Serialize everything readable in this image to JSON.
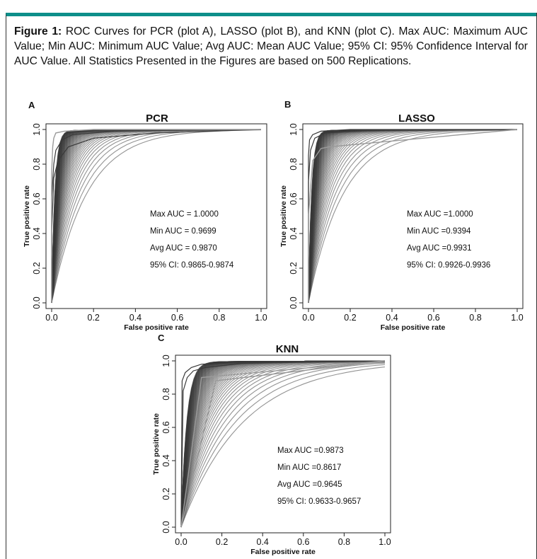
{
  "caption": {
    "label": "Figure 1:",
    "text": "ROC Curves for PCR (plot A), LASSO (plot B), and KNN (plot C). Max AUC: Maximum AUC Value; Min AUC: Minimum AUC Value; Avg AUC: Mean AUC Value; 95% CI: 95% Confidence Interval for AUC Value. All Statistics Presented in the Figures are based on 500 Replications."
  },
  "colors": {
    "accent": "#0d8f8a",
    "curves": "#3a3a3a",
    "light_curves": "#9a9a9a"
  },
  "chart_data": [
    {
      "type": "line",
      "panel": "A",
      "title": "PCR",
      "xlabel": "False positive rate",
      "ylabel": "True positive rate",
      "xlim": [
        0,
        1
      ],
      "ylim": [
        0,
        1
      ],
      "xticks": [
        "0.0",
        "0.2",
        "0.4",
        "0.6",
        "0.8",
        "1.0"
      ],
      "yticks": [
        "0.0",
        "0.2",
        "0.4",
        "0.6",
        "0.8",
        "1.0"
      ],
      "series": [
        {
          "x": [
            0.0,
            0.0,
            0.01,
            0.02,
            0.05,
            0.1,
            0.3,
            1.0
          ],
          "y": [
            0.0,
            0.6,
            0.8,
            0.88,
            0.94,
            0.97,
            0.99,
            1.0
          ]
        },
        {
          "x": [
            0.0,
            0.0,
            0.01,
            0.03,
            0.08,
            0.2,
            0.5,
            1.0
          ],
          "y": [
            0.0,
            0.4,
            0.72,
            0.82,
            0.9,
            0.95,
            0.98,
            1.0
          ]
        },
        {
          "x": [
            0.0,
            0.0,
            0.005,
            0.01,
            0.02,
            0.06,
            0.2,
            1.0
          ],
          "y": [
            0.0,
            0.75,
            0.9,
            0.95,
            0.98,
            0.99,
            1.0,
            1.0
          ]
        }
      ],
      "annotations": [
        "Max AUC = 1.0000",
        "Min AUC = 0.9699",
        "Avg AUC = 0.9870",
        "95% CI: 0.9865-0.9874"
      ],
      "grid": false
    },
    {
      "type": "line",
      "panel": "B",
      "title": "LASSO",
      "xlabel": "False positive rate",
      "ylabel": "True positive rate",
      "xlim": [
        0,
        1
      ],
      "ylim": [
        0,
        1
      ],
      "xticks": [
        "0.0",
        "0.2",
        "0.4",
        "0.6",
        "0.8",
        "1.0"
      ],
      "yticks": [
        "0.0",
        "0.2",
        "0.4",
        "0.6",
        "0.8",
        "1.0"
      ],
      "series": [
        {
          "x": [
            0.0,
            0.0,
            0.01,
            0.03,
            0.08,
            0.3,
            1.0
          ],
          "y": [
            0.0,
            0.7,
            0.88,
            0.95,
            0.98,
            0.995,
            1.0
          ]
        },
        {
          "x": [
            0.0,
            0.0,
            0.005,
            0.02,
            0.06,
            0.2,
            1.0
          ],
          "y": [
            0.0,
            0.85,
            0.94,
            0.97,
            0.99,
            1.0,
            1.0
          ]
        },
        {
          "x": [
            0.0,
            0.0,
            0.02,
            0.06,
            0.1,
            1.0
          ],
          "y": [
            0.0,
            0.5,
            0.82,
            0.89,
            0.9,
            1.0
          ]
        }
      ],
      "annotations": [
        "Max AUC =1.0000",
        "Min AUC =0.9394",
        "Avg AUC =0.9931",
        "95% CI: 0.9926-0.9936"
      ],
      "grid": false
    },
    {
      "type": "line",
      "panel": "C",
      "title": "KNN",
      "xlabel": "False positive rate",
      "ylabel": "True positive rate",
      "xlim": [
        0,
        1
      ],
      "ylim": [
        0,
        1
      ],
      "xticks": [
        "0.0",
        "0.2",
        "0.4",
        "0.6",
        "0.8",
        "1.0"
      ],
      "yticks": [
        "0.0",
        "0.2",
        "0.4",
        "0.6",
        "0.8",
        "1.0"
      ],
      "series": [
        {
          "x": [
            0.0,
            0.01,
            0.03,
            0.06,
            0.12,
            0.3,
            1.0
          ],
          "y": [
            0.0,
            0.82,
            0.9,
            0.94,
            0.96,
            0.985,
            1.0
          ]
        },
        {
          "x": [
            0.0,
            0.005,
            0.02,
            0.05,
            0.1,
            0.25,
            1.0
          ],
          "y": [
            0.0,
            0.88,
            0.93,
            0.96,
            0.98,
            0.99,
            1.0
          ]
        },
        {
          "x": [
            0.0,
            0.17,
            1.0
          ],
          "y": [
            0.0,
            0.88,
            1.0
          ]
        },
        {
          "x": [
            0.0,
            0.1,
            1.0
          ],
          "y": [
            0.0,
            0.9,
            1.0
          ]
        }
      ],
      "annotations": [
        "Max AUC =0.9873",
        "Min AUC =0.8617",
        "Avg AUC =0.9645",
        "95% CI: 0.9633-0.9657"
      ],
      "grid": false
    }
  ]
}
